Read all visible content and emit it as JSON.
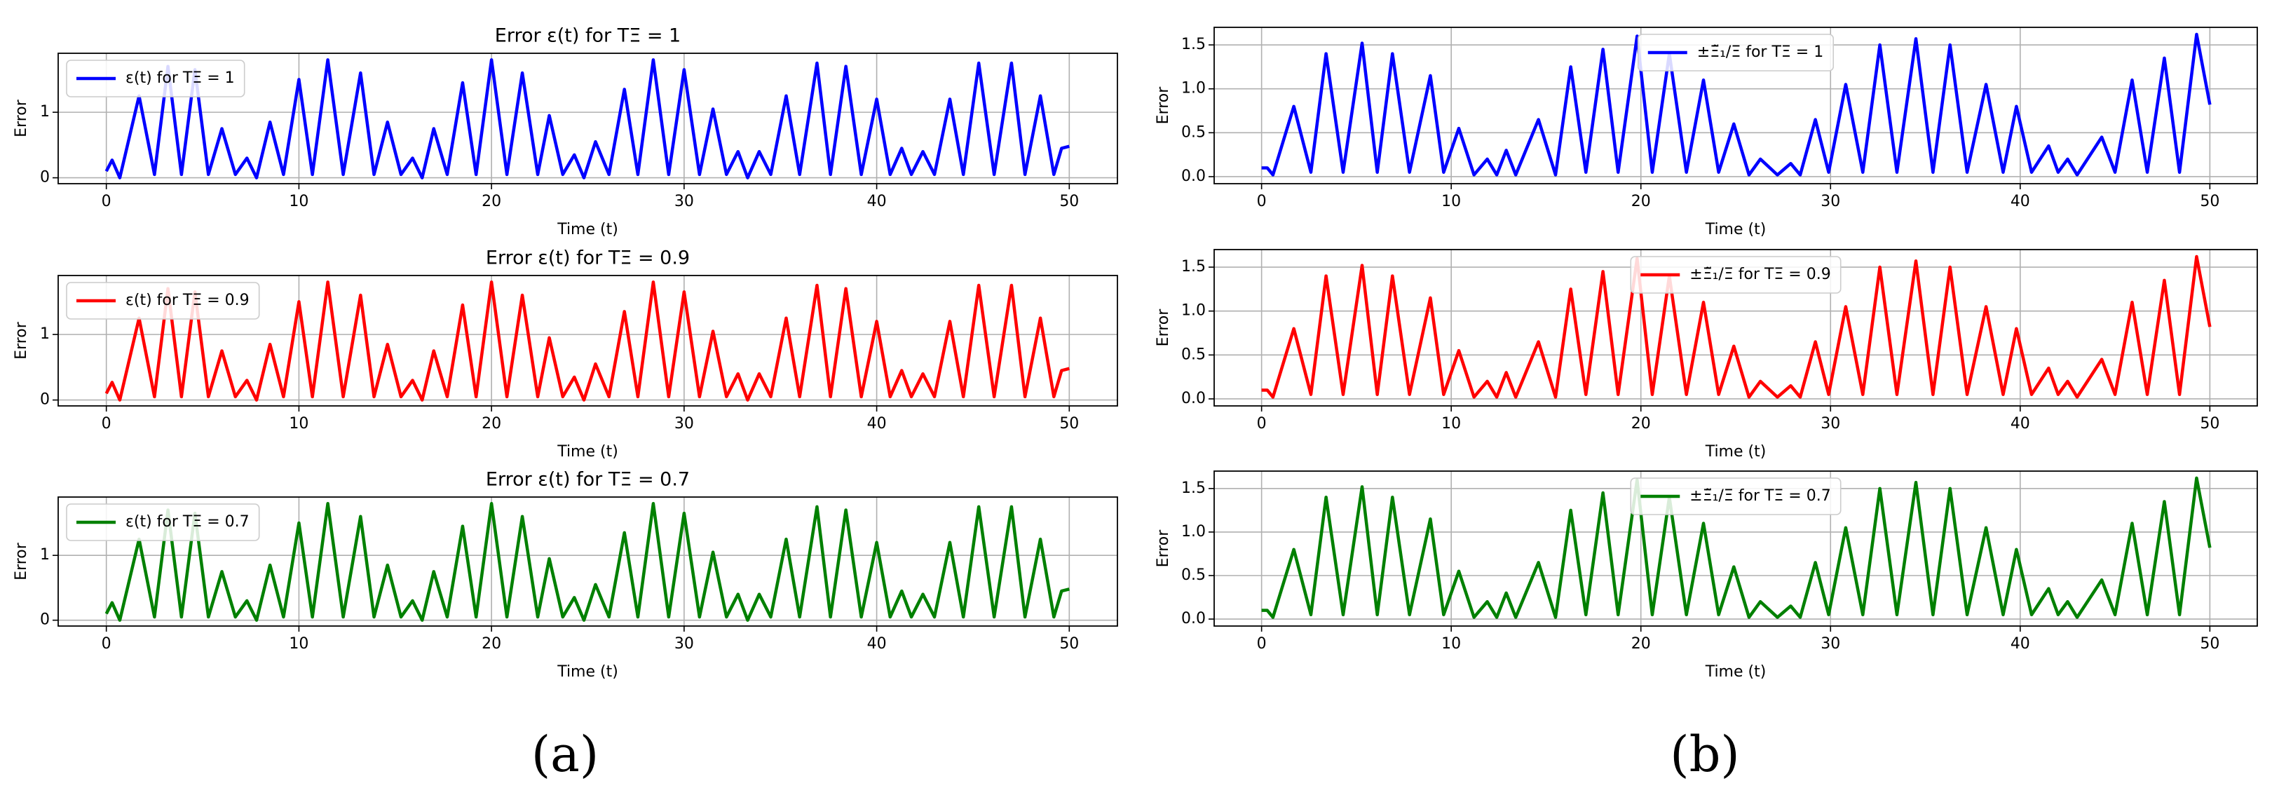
{
  "captions": [
    "(a)",
    "(b)"
  ],
  "chart_data": [
    {
      "type": "line",
      "title": "Error ε(t) for TΞ = 1",
      "xlabel": "Time (t)",
      "ylabel": "Error",
      "x": [
        0,
        0.3,
        0.7,
        1.7,
        2.5,
        3.2,
        3.9,
        4.6,
        5.3,
        6.0,
        6.7,
        7.3,
        7.8,
        8.5,
        9.2,
        10.0,
        10.7,
        11.5,
        12.3,
        13.2,
        13.9,
        14.6,
        15.3,
        15.9,
        16.4,
        17.0,
        17.7,
        18.5,
        19.2,
        20.0,
        20.8,
        21.6,
        22.4,
        23.0,
        23.7,
        24.3,
        24.8,
        25.4,
        26.1,
        26.9,
        27.6,
        28.4,
        29.2,
        30.0,
        30.8,
        31.5,
        32.2,
        32.8,
        33.3,
        33.9,
        34.5,
        35.3,
        36.0,
        36.9,
        37.6,
        38.4,
        39.2,
        40.0,
        40.7,
        41.3,
        41.8,
        42.4,
        43.0,
        43.8,
        44.5,
        45.3,
        46.1,
        47.0,
        47.7,
        48.5,
        49.2,
        49.6,
        50
      ],
      "series": [
        {
          "name": "ε(t) for TΞ = 1",
          "color": "#0000ff",
          "values": [
            0.1,
            0.27,
            0,
            1.25,
            0.05,
            1.7,
            0.05,
            1.65,
            0.05,
            0.75,
            0.05,
            0.3,
            0,
            0.85,
            0.05,
            1.5,
            0.05,
            1.8,
            0.05,
            1.6,
            0.05,
            0.85,
            0.05,
            0.3,
            0,
            0.75,
            0.05,
            1.45,
            0.05,
            1.8,
            0.05,
            1.6,
            0.05,
            0.95,
            0.05,
            0.35,
            0,
            0.55,
            0.05,
            1.35,
            0.05,
            1.8,
            0.05,
            1.65,
            0.05,
            1.05,
            0.05,
            0.4,
            0,
            0.4,
            0.05,
            1.25,
            0.05,
            1.75,
            0.05,
            1.7,
            0.05,
            1.2,
            0.05,
            0.45,
            0.05,
            0.4,
            0.05,
            1.2,
            0.05,
            1.75,
            0.05,
            1.75,
            0.05,
            1.25,
            0.05,
            0.45,
            0.48
          ]
        }
      ],
      "xlim": [
        -2.5,
        52.5
      ],
      "ylim": [
        -0.09,
        1.9
      ],
      "xticks": [
        0,
        10,
        20,
        30,
        40,
        50
      ],
      "yticks": [
        0,
        1
      ],
      "grid": true,
      "legend": "upper left"
    },
    {
      "type": "line",
      "title": "Error ε(t) for TΞ = 0.9",
      "xlabel": "Time (t)",
      "ylabel": "Error",
      "x": [
        0,
        0.3,
        0.7,
        1.7,
        2.5,
        3.2,
        3.9,
        4.6,
        5.3,
        6.0,
        6.7,
        7.3,
        7.8,
        8.5,
        9.2,
        10.0,
        10.7,
        11.5,
        12.3,
        13.2,
        13.9,
        14.6,
        15.3,
        15.9,
        16.4,
        17.0,
        17.7,
        18.5,
        19.2,
        20.0,
        20.8,
        21.6,
        22.4,
        23.0,
        23.7,
        24.3,
        24.8,
        25.4,
        26.1,
        26.9,
        27.6,
        28.4,
        29.2,
        30.0,
        30.8,
        31.5,
        32.2,
        32.8,
        33.3,
        33.9,
        34.5,
        35.3,
        36.0,
        36.9,
        37.6,
        38.4,
        39.2,
        40.0,
        40.7,
        41.3,
        41.8,
        42.4,
        43.0,
        43.8,
        44.5,
        45.3,
        46.1,
        47.0,
        47.7,
        48.5,
        49.2,
        49.6,
        50
      ],
      "series": [
        {
          "name": "ε(t) for TΞ = 0.9",
          "color": "#ff0000",
          "values": [
            0.1,
            0.27,
            0,
            1.25,
            0.05,
            1.7,
            0.05,
            1.65,
            0.05,
            0.75,
            0.05,
            0.3,
            0,
            0.85,
            0.05,
            1.5,
            0.05,
            1.8,
            0.05,
            1.6,
            0.05,
            0.85,
            0.05,
            0.3,
            0,
            0.75,
            0.05,
            1.45,
            0.05,
            1.8,
            0.05,
            1.6,
            0.05,
            0.95,
            0.05,
            0.35,
            0,
            0.55,
            0.05,
            1.35,
            0.05,
            1.8,
            0.05,
            1.65,
            0.05,
            1.05,
            0.05,
            0.4,
            0,
            0.4,
            0.05,
            1.25,
            0.05,
            1.75,
            0.05,
            1.7,
            0.05,
            1.2,
            0.05,
            0.45,
            0.05,
            0.4,
            0.05,
            1.2,
            0.05,
            1.75,
            0.05,
            1.75,
            0.05,
            1.25,
            0.05,
            0.45,
            0.48
          ]
        }
      ],
      "xlim": [
        -2.5,
        52.5
      ],
      "ylim": [
        -0.09,
        1.9
      ],
      "xticks": [
        0,
        10,
        20,
        30,
        40,
        50
      ],
      "yticks": [
        0,
        1
      ],
      "grid": true,
      "legend": "upper left"
    },
    {
      "type": "line",
      "title": "Error ε(t) for TΞ = 0.7",
      "xlabel": "Time (t)",
      "ylabel": "Error",
      "x": [
        0,
        0.3,
        0.7,
        1.7,
        2.5,
        3.2,
        3.9,
        4.6,
        5.3,
        6.0,
        6.7,
        7.3,
        7.8,
        8.5,
        9.2,
        10.0,
        10.7,
        11.5,
        12.3,
        13.2,
        13.9,
        14.6,
        15.3,
        15.9,
        16.4,
        17.0,
        17.7,
        18.5,
        19.2,
        20.0,
        20.8,
        21.6,
        22.4,
        23.0,
        23.7,
        24.3,
        24.8,
        25.4,
        26.1,
        26.9,
        27.6,
        28.4,
        29.2,
        30.0,
        30.8,
        31.5,
        32.2,
        32.8,
        33.3,
        33.9,
        34.5,
        35.3,
        36.0,
        36.9,
        37.6,
        38.4,
        39.2,
        40.0,
        40.7,
        41.3,
        41.8,
        42.4,
        43.0,
        43.8,
        44.5,
        45.3,
        46.1,
        47.0,
        47.7,
        48.5,
        49.2,
        49.6,
        50
      ],
      "series": [
        {
          "name": "ε(t) for TΞ = 0.7",
          "color": "#008000",
          "values": [
            0.1,
            0.27,
            0,
            1.25,
            0.05,
            1.7,
            0.05,
            1.65,
            0.05,
            0.75,
            0.05,
            0.3,
            0,
            0.85,
            0.05,
            1.5,
            0.05,
            1.8,
            0.05,
            1.6,
            0.05,
            0.85,
            0.05,
            0.3,
            0,
            0.75,
            0.05,
            1.45,
            0.05,
            1.8,
            0.05,
            1.6,
            0.05,
            0.95,
            0.05,
            0.35,
            0,
            0.55,
            0.05,
            1.35,
            0.05,
            1.8,
            0.05,
            1.65,
            0.05,
            1.05,
            0.05,
            0.4,
            0,
            0.4,
            0.05,
            1.25,
            0.05,
            1.75,
            0.05,
            1.7,
            0.05,
            1.2,
            0.05,
            0.45,
            0.05,
            0.4,
            0.05,
            1.2,
            0.05,
            1.75,
            0.05,
            1.75,
            0.05,
            1.25,
            0.05,
            0.45,
            0.48
          ]
        }
      ],
      "xlim": [
        -2.5,
        52.5
      ],
      "ylim": [
        -0.09,
        1.9
      ],
      "xticks": [
        0,
        10,
        20,
        30,
        40,
        50
      ],
      "yticks": [
        0,
        1
      ],
      "grid": true,
      "legend": "upper left"
    },
    {
      "type": "line",
      "xlabel": "Time (t)",
      "ylabel": "Error",
      "x": [
        0,
        0.3,
        0.6,
        1.7,
        2.6,
        3.4,
        4.3,
        5.3,
        6.1,
        6.9,
        7.8,
        8.9,
        9.6,
        10.4,
        11.2,
        11.9,
        12.4,
        12.9,
        13.4,
        14.6,
        15.5,
        16.3,
        17.1,
        18.0,
        18.8,
        19.8,
        20.6,
        21.5,
        22.4,
        23.3,
        24.1,
        24.9,
        25.7,
        26.3,
        27.2,
        27.9,
        28.4,
        29.2,
        29.9,
        30.8,
        31.7,
        32.6,
        33.5,
        34.5,
        35.4,
        36.3,
        37.2,
        38.2,
        39.1,
        39.8,
        40.6,
        41.5,
        42.0,
        42.5,
        43.0,
        44.3,
        45.0,
        45.9,
        46.7,
        47.6,
        48.4,
        49.3,
        50
      ],
      "series": [
        {
          "name": "±Ξ̃₁/Ξ for TΞ = 1",
          "color": "#0000ff",
          "values": [
            0.1,
            0.1,
            0.02,
            0.8,
            0.05,
            1.4,
            0.05,
            1.52,
            0.05,
            1.4,
            0.05,
            1.15,
            0.05,
            0.55,
            0.02,
            0.2,
            0.02,
            0.3,
            0.02,
            0.65,
            0.02,
            1.25,
            0.05,
            1.45,
            0.05,
            1.6,
            0.05,
            1.4,
            0.05,
            1.1,
            0.05,
            0.6,
            0.02,
            0.2,
            0.02,
            0.15,
            0.02,
            0.65,
            0.05,
            1.05,
            0.05,
            1.5,
            0.05,
            1.57,
            0.05,
            1.5,
            0.05,
            1.05,
            0.05,
            0.8,
            0.05,
            0.35,
            0.05,
            0.2,
            0.02,
            0.45,
            0.05,
            1.1,
            0.05,
            1.35,
            0.05,
            1.62,
            0.82
          ]
        }
      ],
      "xlim": [
        -2.5,
        52.5
      ],
      "ylim": [
        -0.08,
        1.7
      ],
      "xticks": [
        0,
        10,
        20,
        30,
        40,
        50
      ],
      "yticks": [
        {
          "value": 0,
          "label": "0.0"
        },
        0.5,
        {
          "value": 1,
          "label": "1.0"
        },
        1.5
      ],
      "grid": true,
      "legend": "upper center"
    },
    {
      "type": "line",
      "xlabel": "Time (t)",
      "ylabel": "Error",
      "x": [
        0,
        0.3,
        0.6,
        1.7,
        2.6,
        3.4,
        4.3,
        5.3,
        6.1,
        6.9,
        7.8,
        8.9,
        9.6,
        10.4,
        11.2,
        11.9,
        12.4,
        12.9,
        13.4,
        14.6,
        15.5,
        16.3,
        17.1,
        18.0,
        18.8,
        19.8,
        20.6,
        21.5,
        22.4,
        23.3,
        24.1,
        24.9,
        25.7,
        26.3,
        27.2,
        27.9,
        28.4,
        29.2,
        29.9,
        30.8,
        31.7,
        32.6,
        33.5,
        34.5,
        35.4,
        36.3,
        37.2,
        38.2,
        39.1,
        39.8,
        40.6,
        41.5,
        42.0,
        42.5,
        43.0,
        44.3,
        45.0,
        45.9,
        46.7,
        47.6,
        48.4,
        49.3,
        50
      ],
      "series": [
        {
          "name": "±Ξ̃₁/Ξ for TΞ = 0.9",
          "color": "#ff0000",
          "values": [
            0.1,
            0.1,
            0.02,
            0.8,
            0.05,
            1.4,
            0.05,
            1.52,
            0.05,
            1.4,
            0.05,
            1.15,
            0.05,
            0.55,
            0.02,
            0.2,
            0.02,
            0.3,
            0.02,
            0.65,
            0.02,
            1.25,
            0.05,
            1.45,
            0.05,
            1.6,
            0.05,
            1.4,
            0.05,
            1.1,
            0.05,
            0.6,
            0.02,
            0.2,
            0.02,
            0.15,
            0.02,
            0.65,
            0.05,
            1.05,
            0.05,
            1.5,
            0.05,
            1.57,
            0.05,
            1.5,
            0.05,
            1.05,
            0.05,
            0.8,
            0.05,
            0.35,
            0.05,
            0.2,
            0.02,
            0.45,
            0.05,
            1.1,
            0.05,
            1.35,
            0.05,
            1.62,
            0.82
          ]
        }
      ],
      "xlim": [
        -2.5,
        52.5
      ],
      "ylim": [
        -0.08,
        1.7
      ],
      "xticks": [
        0,
        10,
        20,
        30,
        40,
        50
      ],
      "yticks": [
        {
          "value": 0,
          "label": "0.0"
        },
        0.5,
        {
          "value": 1,
          "label": "1.0"
        },
        1.5
      ],
      "grid": true,
      "legend": "upper center"
    },
    {
      "type": "line",
      "xlabel": "Time (t)",
      "ylabel": "Error",
      "x": [
        0,
        0.3,
        0.6,
        1.7,
        2.6,
        3.4,
        4.3,
        5.3,
        6.1,
        6.9,
        7.8,
        8.9,
        9.6,
        10.4,
        11.2,
        11.9,
        12.4,
        12.9,
        13.4,
        14.6,
        15.5,
        16.3,
        17.1,
        18.0,
        18.8,
        19.8,
        20.6,
        21.5,
        22.4,
        23.3,
        24.1,
        24.9,
        25.7,
        26.3,
        27.2,
        27.9,
        28.4,
        29.2,
        29.9,
        30.8,
        31.7,
        32.6,
        33.5,
        34.5,
        35.4,
        36.3,
        37.2,
        38.2,
        39.1,
        39.8,
        40.6,
        41.5,
        42.0,
        42.5,
        43.0,
        44.3,
        45.0,
        45.9,
        46.7,
        47.6,
        48.4,
        49.3,
        50
      ],
      "series": [
        {
          "name": "±Ξ̃₁/Ξ for TΞ = 0.7",
          "color": "#008000",
          "values": [
            0.1,
            0.1,
            0.02,
            0.8,
            0.05,
            1.4,
            0.05,
            1.52,
            0.05,
            1.4,
            0.05,
            1.15,
            0.05,
            0.55,
            0.02,
            0.2,
            0.02,
            0.3,
            0.02,
            0.65,
            0.02,
            1.25,
            0.05,
            1.45,
            0.05,
            1.6,
            0.05,
            1.4,
            0.05,
            1.1,
            0.05,
            0.6,
            0.02,
            0.2,
            0.02,
            0.15,
            0.02,
            0.65,
            0.05,
            1.05,
            0.05,
            1.5,
            0.05,
            1.57,
            0.05,
            1.5,
            0.05,
            1.05,
            0.05,
            0.8,
            0.05,
            0.35,
            0.05,
            0.2,
            0.02,
            0.45,
            0.05,
            1.1,
            0.05,
            1.35,
            0.05,
            1.62,
            0.82
          ]
        }
      ],
      "xlim": [
        -2.5,
        52.5
      ],
      "ylim": [
        -0.08,
        1.7
      ],
      "xticks": [
        0,
        10,
        20,
        30,
        40,
        50
      ],
      "yticks": [
        {
          "value": 0,
          "label": "0.0"
        },
        0.5,
        {
          "value": 1,
          "label": "1.0"
        },
        1.5
      ],
      "grid": true,
      "legend": "upper center"
    }
  ]
}
